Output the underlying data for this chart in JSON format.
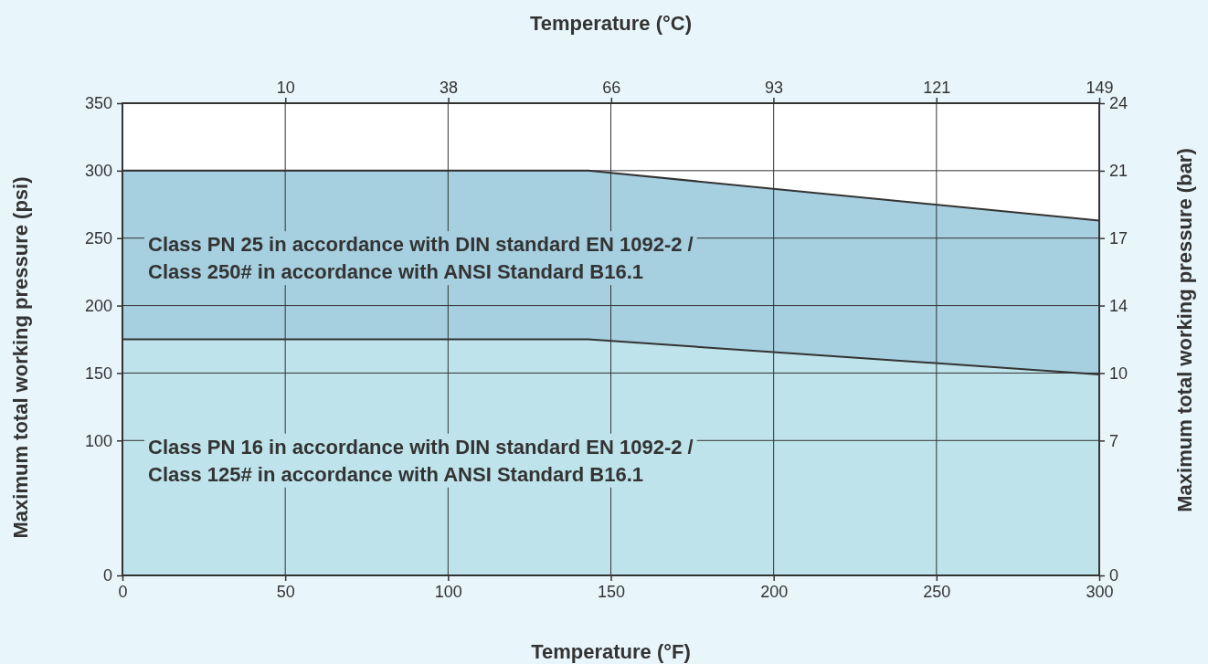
{
  "chart_data": {
    "type": "area",
    "xlabel": "Temperature (°F)",
    "x2label": "Temperature (°C)",
    "ylabel": "Maximum total working pressure (psi)",
    "y2label": "Maximum total working pressure (bar)",
    "x": [
      0,
      143,
      300
    ],
    "series": [
      {
        "name": "Class PN 25 in accordance with DIN standard EN 1092-2 /\nClass 250# in accordance with ANSI Standard B16.1",
        "color": "#a6cfdf",
        "values": [
          300,
          300,
          263
        ]
      },
      {
        "name": "Class PN 16 in accordance with DIN standard EN 1092-2 /\nClass 125# in accordance with ANSI Standard B16.1",
        "color": "#bee3eb",
        "values": [
          175,
          175,
          149
        ]
      }
    ],
    "xlim": [
      0,
      300
    ],
    "xticks": [
      0,
      50,
      100,
      150,
      200,
      250,
      300
    ],
    "x2lim": [
      -17.8,
      148.9
    ],
    "x2ticks": [
      10,
      {
        "value": 37.8,
        "label": "38"
      },
      {
        "value": 65.6,
        "label": "66"
      },
      {
        "value": 93.3,
        "label": "93"
      },
      {
        "value": 121.1,
        "label": "121"
      },
      {
        "value": 148.9,
        "label": "149"
      }
    ],
    "ylim": [
      0,
      350
    ],
    "yticks": [
      0,
      100,
      150,
      200,
      250,
      300,
      350
    ],
    "y2lim": [
      0,
      24.13
    ],
    "y2ticks": [
      0,
      {
        "value": 6.89,
        "label": "7"
      },
      {
        "value": 10.34,
        "label": "10"
      },
      {
        "value": 13.79,
        "label": "14"
      },
      {
        "value": 17.24,
        "label": "17"
      },
      {
        "value": 20.68,
        "label": "21"
      },
      {
        "value": 24.13,
        "label": "24"
      }
    ],
    "grid": true
  }
}
